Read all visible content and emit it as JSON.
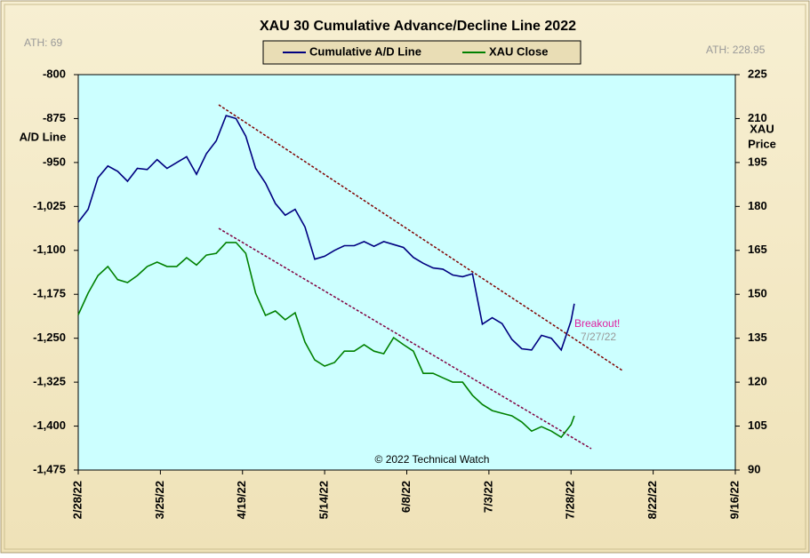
{
  "chart_data": {
    "type": "line",
    "title": "XAU 30 Cumulative  Advance/Decline  Line 2022",
    "left_note": "ATH: 69",
    "right_note": "ATH: 228.95",
    "ylabel": "A/D Line",
    "y2label": [
      "XAU",
      "Price"
    ],
    "annotation": "Breakout!",
    "annotation_date": "7/27/22",
    "credit": "© 2022 Technical Watch",
    "xlim": [
      "2/28/22",
      "9/16/22"
    ],
    "xticks": [
      "2/28/22",
      "3/25/22",
      "4/19/22",
      "5/14/22",
      "6/8/22",
      "7/3/22",
      "7/28/22",
      "8/22/22",
      "9/16/22"
    ],
    "ylim": [
      -1475,
      -800
    ],
    "yticks": [
      -800,
      -875,
      -950,
      {
        "value": -1025,
        "label": "-1,025"
      },
      {
        "value": -1100,
        "label": "-1,100"
      },
      {
        "value": -1175,
        "label": "-1,175"
      },
      {
        "value": -1250,
        "label": "-1,250"
      },
      {
        "value": -1325,
        "label": "-1,325"
      },
      {
        "value": -1400,
        "label": "-1,400"
      },
      {
        "value": -1475,
        "label": "-1,475"
      }
    ],
    "y2lim": [
      90,
      225
    ],
    "y2ticks": [
      225,
      210,
      195,
      180,
      165,
      150,
      135,
      120,
      105,
      90
    ],
    "x": [
      "2/28/22",
      "3/3/22",
      "3/6/22",
      "3/9/22",
      "3/12/22",
      "3/15/22",
      "3/18/22",
      "3/21/22",
      "3/24/22",
      "3/27/22",
      "3/30/22",
      "4/2/22",
      "4/5/22",
      "4/8/22",
      "4/11/22",
      "4/14/22",
      "4/17/22",
      "4/20/22",
      "4/23/22",
      "4/26/22",
      "4/29/22",
      "5/2/22",
      "5/5/22",
      "5/8/22",
      "5/11/22",
      "5/14/22",
      "5/17/22",
      "5/20/22",
      "5/23/22",
      "5/26/22",
      "5/29/22",
      "6/1/22",
      "6/4/22",
      "6/7/22",
      "6/10/22",
      "6/13/22",
      "6/16/22",
      "6/19/22",
      "6/22/22",
      "6/25/22",
      "6/28/22",
      "7/1/22",
      "7/4/22",
      "7/7/22",
      "7/10/22",
      "7/13/22",
      "7/16/22",
      "7/19/22",
      "7/22/22",
      "7/25/22",
      "7/28/22",
      "7/29/22"
    ],
    "series": [
      {
        "name": "Cumulative A/D Line",
        "color": "#000080",
        "values": [
          -1052,
          -1030,
          -976,
          -956,
          -965,
          -982,
          -960,
          -962,
          -945,
          -960,
          -950,
          -940,
          -970,
          -935,
          -913,
          -870,
          -875,
          -905,
          -960,
          -985,
          -1020,
          -1040,
          -1030,
          -1060,
          -1115,
          -1110,
          -1100,
          -1092,
          -1092,
          -1085,
          -1093,
          -1085,
          -1090,
          -1095,
          -1112,
          -1122,
          -1130,
          -1132,
          -1142,
          -1145,
          -1140,
          -1226,
          -1215,
          -1225,
          -1252,
          -1268,
          -1270,
          -1245,
          -1250,
          -1270,
          -1220,
          -1191
        ]
      },
      {
        "name": "XAU Close",
        "color": "#008000",
        "axis": "y2",
        "values": [
          143,
          150.4,
          156.4,
          159.5,
          155,
          154,
          156.4,
          159.5,
          161,
          159.5,
          159.5,
          162.5,
          160,
          163.4,
          164,
          167.7,
          167.7,
          164,
          150.4,
          142.8,
          144.3,
          141.3,
          143.7,
          133.7,
          127.6,
          125.5,
          126.7,
          130.6,
          130.6,
          132.8,
          130.6,
          129.7,
          135.2,
          132.8,
          130.6,
          123,
          123,
          121.5,
          120,
          120,
          115.5,
          112.4,
          110.3,
          109.4,
          108.5,
          106.4,
          103.3,
          104.8,
          103.3,
          101.2,
          105.5,
          108.5
        ]
      }
    ]
  }
}
